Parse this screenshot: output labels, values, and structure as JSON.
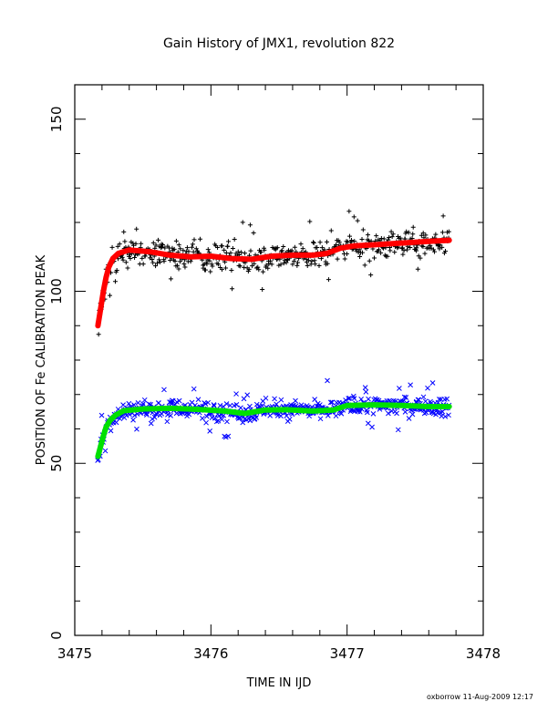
{
  "chart_data": {
    "type": "scatter",
    "title": "Gain History of JMX1, revolution 822",
    "xlabel": "TIME IN IJD",
    "ylabel": "POSITION OF Fe CALIBRATION PEAK",
    "xlim": [
      3475,
      3478
    ],
    "ylim": [
      0,
      160
    ],
    "xticks": [
      3475,
      3476,
      3477,
      3478
    ],
    "yticks": [
      0,
      50,
      100,
      150
    ],
    "footer": "oxborrow 11-Aug-2009 12:17",
    "series": [
      {
        "marker": "plus",
        "color": "#000000",
        "trend_color": "#ff0000",
        "x_range": [
          3475.17,
          3477.75
        ],
        "trend": [
          [
            3475.17,
            90
          ],
          [
            3475.19,
            95
          ],
          [
            3475.21,
            100
          ],
          [
            3475.23,
            104
          ],
          [
            3475.25,
            107
          ],
          [
            3475.28,
            109.5
          ],
          [
            3475.32,
            111
          ],
          [
            3475.4,
            112
          ],
          [
            3475.55,
            111.5
          ],
          [
            3475.7,
            110.5
          ],
          [
            3475.85,
            110
          ],
          [
            3476.0,
            110.2
          ],
          [
            3476.15,
            109.5
          ],
          [
            3476.3,
            109.3
          ],
          [
            3476.45,
            110.2
          ],
          [
            3476.6,
            110.5
          ],
          [
            3476.75,
            110.5
          ],
          [
            3476.85,
            111
          ],
          [
            3476.95,
            112.5
          ],
          [
            3477.05,
            113.2
          ],
          [
            3477.2,
            113.5
          ],
          [
            3477.4,
            114
          ],
          [
            3477.6,
            114.5
          ],
          [
            3477.75,
            114.8
          ]
        ],
        "scatter_spread": 3.5
      },
      {
        "marker": "x",
        "color": "#0000ff",
        "trend_color": "#00e000",
        "x_range": [
          3475.17,
          3477.75
        ],
        "trend": [
          [
            3475.17,
            52
          ],
          [
            3475.19,
            55
          ],
          [
            3475.21,
            58
          ],
          [
            3475.23,
            60.5
          ],
          [
            3475.26,
            62.5
          ],
          [
            3475.3,
            64
          ],
          [
            3475.36,
            65.3
          ],
          [
            3475.5,
            65.8
          ],
          [
            3475.7,
            66
          ],
          [
            3475.9,
            65.7
          ],
          [
            3476.1,
            65.2
          ],
          [
            3476.25,
            64.5
          ],
          [
            3476.4,
            65.5
          ],
          [
            3476.55,
            65.6
          ],
          [
            3476.75,
            65.2
          ],
          [
            3476.9,
            65.5
          ],
          [
            3477.0,
            66.8
          ],
          [
            3477.2,
            67
          ],
          [
            3477.4,
            66.8
          ],
          [
            3477.6,
            66.5
          ],
          [
            3477.75,
            66.5
          ]
        ],
        "scatter_spread": 2.5
      }
    ]
  }
}
